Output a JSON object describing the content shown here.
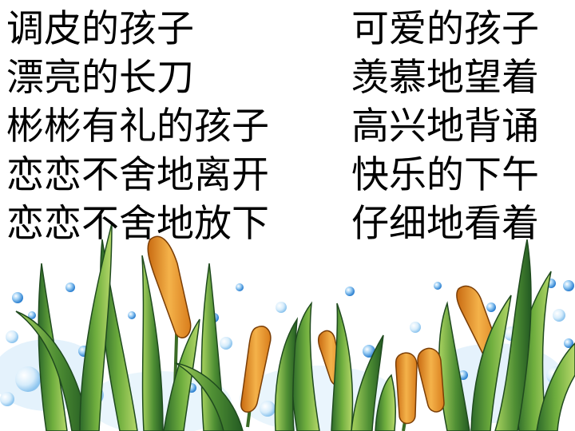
{
  "left_phrases": [
    "调皮的孩子",
    "漂亮的长刀",
    "彬彬有礼的孩子",
    "恋恋不舍地离开",
    "恋恋不舍地放下"
  ],
  "right_phrases": [
    "可爱的孩子",
    "羡慕地望着",
    "高兴地背诵",
    "快乐的下午",
    "仔细地看着"
  ],
  "colors": {
    "background": "#ffffff",
    "text": "#000000",
    "bubble": "#3a8fd8",
    "leaf_dark": "#2f6e2c",
    "leaf_light": "#8cc04a",
    "cattail": "#e79a2e"
  }
}
